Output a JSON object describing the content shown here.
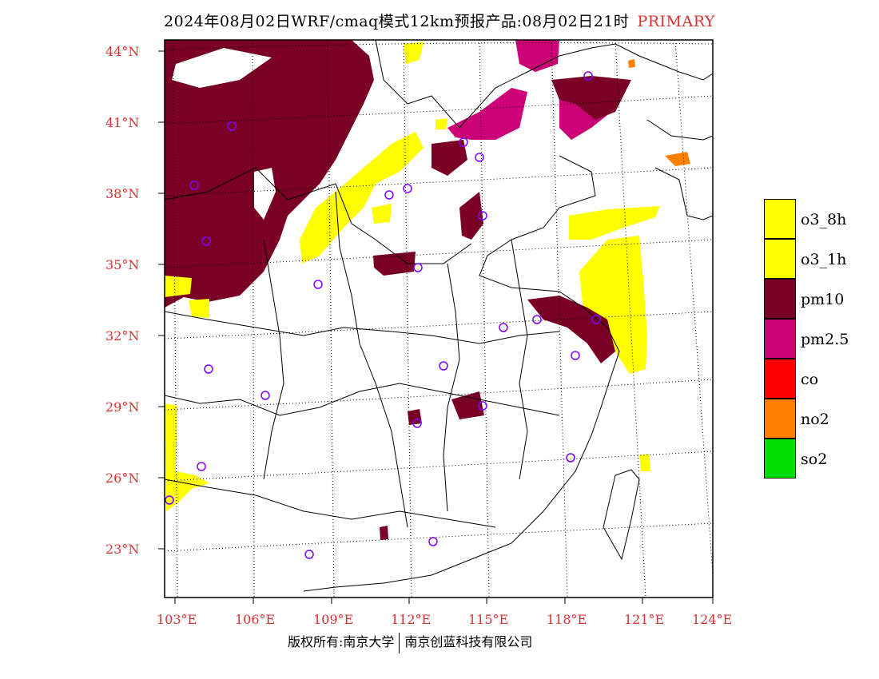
{
  "title": {
    "main": "2024年08月02日WRF/cmaq模式12km预报产品:08月02日21时",
    "tag": "PRIMARY"
  },
  "lat_labels": [
    "44°N",
    "41°N",
    "38°N",
    "35°N",
    "32°N",
    "29°N",
    "26°N",
    "23°N"
  ],
  "lon_labels": [
    "103°E",
    "106°E",
    "109°E",
    "112°E",
    "115°E",
    "118°E",
    "121°E",
    "124°E"
  ],
  "legend": [
    {
      "label": "o3_8h",
      "color": "#ffff00"
    },
    {
      "label": "o3_1h",
      "color": "#ffff00"
    },
    {
      "label": "pm10",
      "color": "#7a0026"
    },
    {
      "label": "pm2.5",
      "color": "#cc0077"
    },
    {
      "label": "co",
      "color": "#ff0000"
    },
    {
      "label": "no2",
      "color": "#ff7f00"
    },
    {
      "label": "so2",
      "color": "#00dd00"
    }
  ],
  "footer": {
    "left": "版权所有:南京大学",
    "right": "南京创蓝科技有限公司"
  }
}
